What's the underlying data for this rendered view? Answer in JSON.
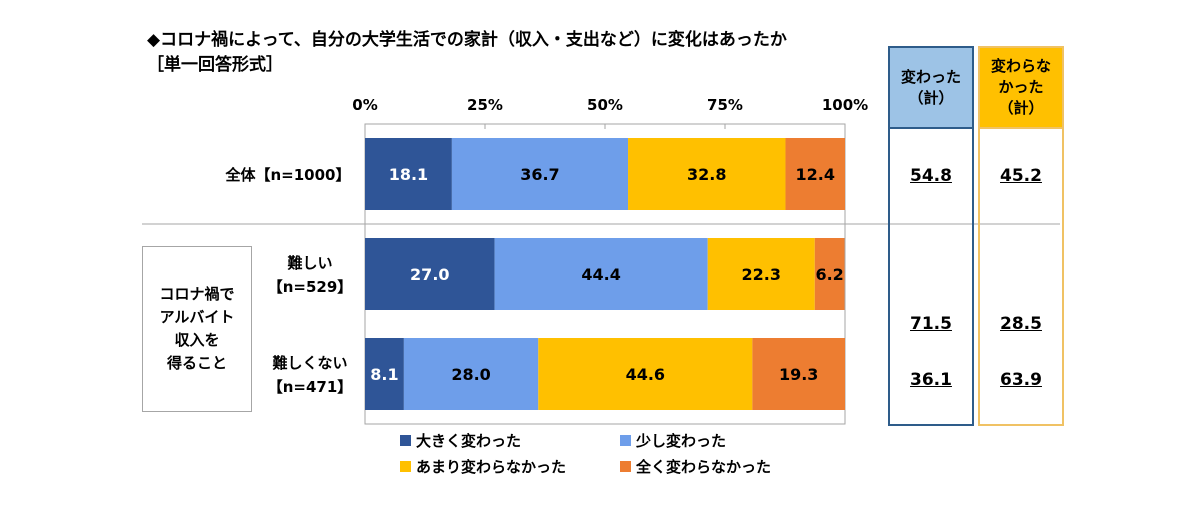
{
  "title": "◆コロナ禍によって、自分の大学生活での家計（収入・支出など）に変化はあったか",
  "subtitle": "［単一回答形式］",
  "group_label": "コロナ禍で\nアルバイト\n収入を\n得ること",
  "total_headers": {
    "changed": "変わった\n（計）",
    "unchanged": "変わらな\nかった\n（計）"
  },
  "totals": [
    {
      "changed": "54.8",
      "unchanged": "45.2"
    },
    {
      "changed": "71.5",
      "unchanged": "28.5"
    },
    {
      "changed": "36.1",
      "unchanged": "63.9"
    }
  ],
  "chart_data": {
    "type": "bar",
    "orientation": "horizontal",
    "stacked": true,
    "xlim": [
      0,
      100
    ],
    "ticks": [
      "0%",
      "25%",
      "50%",
      "75%",
      "100%"
    ],
    "grid": false,
    "legend_position": "bottom",
    "categories": [
      [
        "全体【n=1000】"
      ],
      [
        "難しい",
        "【n=529】"
      ],
      [
        "難しくない",
        "【n=471】"
      ]
    ],
    "series": [
      {
        "name": "大きく変わった",
        "color": "#2f5597",
        "text_color": "#ffffff",
        "values": [
          18.1,
          27.0,
          8.1
        ]
      },
      {
        "name": "少し変わった",
        "color": "#6e9eea",
        "text_color": "#000000",
        "values": [
          36.7,
          44.4,
          28.0
        ]
      },
      {
        "name": "あまり変わらなかった",
        "color": "#ffc000",
        "text_color": "#000000",
        "values": [
          32.8,
          22.3,
          44.6
        ]
      },
      {
        "name": "全く変わらなかった",
        "color": "#ed7d31",
        "text_color": "#000000",
        "values": [
          12.4,
          6.2,
          19.3
        ]
      }
    ]
  }
}
